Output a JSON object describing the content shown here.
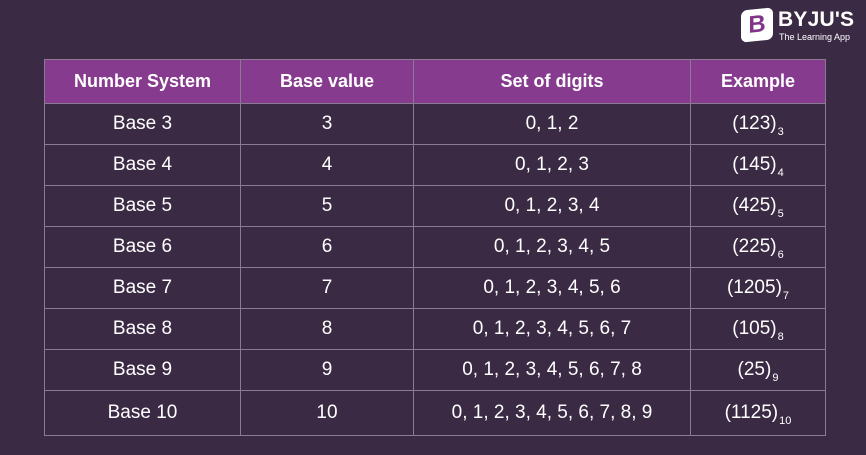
{
  "brand": {
    "name": "BYJU'S",
    "tagline": "The Learning App",
    "mark_letter": "B",
    "color": "#813588"
  },
  "colors": {
    "background": "#3b2a44",
    "header": "#873b8e",
    "border": "#8a7b93"
  },
  "table": {
    "headers": [
      "Number System",
      "Base value",
      "Set of digits",
      "Example"
    ],
    "rows": [
      {
        "system": "Base 3",
        "base": "3",
        "digits": "0, 1, 2",
        "example_value": "(123)",
        "example_base": "3"
      },
      {
        "system": "Base 4",
        "base": "4",
        "digits": "0, 1, 2, 3",
        "example_value": "(145)",
        "example_base": "4"
      },
      {
        "system": "Base 5",
        "base": "5",
        "digits": "0, 1, 2, 3, 4",
        "example_value": "(425)",
        "example_base": "5"
      },
      {
        "system": "Base 6",
        "base": "6",
        "digits": "0, 1, 2, 3, 4, 5",
        "example_value": "(225)",
        "example_base": "6"
      },
      {
        "system": "Base 7",
        "base": "7",
        "digits": "0, 1, 2, 3, 4, 5, 6",
        "example_value": "(1205)",
        "example_base": "7"
      },
      {
        "system": "Base 8",
        "base": "8",
        "digits": "0, 1, 2, 3, 4, 5, 6, 7",
        "example_value": "(105)",
        "example_base": "8"
      },
      {
        "system": "Base 9",
        "base": "9",
        "digits": "0, 1, 2, 3, 4, 5, 6, 7, 8",
        "example_value": "(25)",
        "example_base": "9"
      },
      {
        "system": "Base 10",
        "base": "10",
        "digits": "0, 1, 2, 3, 4, 5, 6, 7, 8, 9",
        "example_value": "(1125)",
        "example_base": "10"
      }
    ]
  }
}
